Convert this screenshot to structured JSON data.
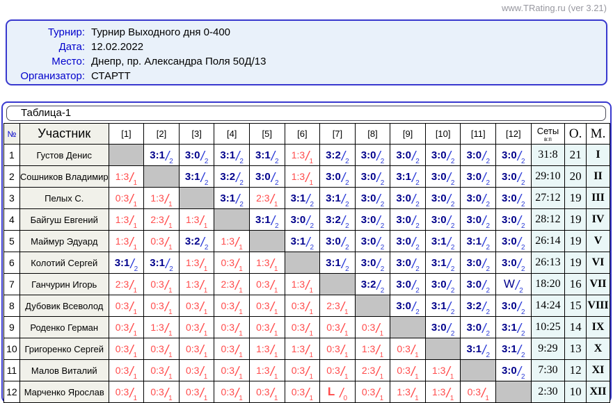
{
  "site_credit": "www.TRating.ru (ver 3.21)",
  "info": {
    "fields": [
      {
        "label": "Турнир:",
        "value": "Турнир Выходного дня 0-400"
      },
      {
        "label": "Дата:",
        "value": "12.02.2022"
      },
      {
        "label": "Место:",
        "value": "Днепр, пр. Александра Поля 50Д/13"
      },
      {
        "label": "Организатор:",
        "value": "СТАРТТ"
      }
    ]
  },
  "table": {
    "tab_title": "Таблица-1",
    "headers": {
      "num": "№",
      "participant": "Участник",
      "rounds": [
        "[1]",
        "[2]",
        "[3]",
        "[4]",
        "[5]",
        "[6]",
        "[7]",
        "[8]",
        "[9]",
        "[10]",
        "[11]",
        "[12]"
      ],
      "sets_top": "Сеты",
      "sets_bottom": "в:п",
      "points": "О.",
      "place": "М."
    },
    "rows": [
      {
        "num": "1",
        "name": "Густов Денис",
        "cells": [
          null,
          {
            "s": "3:1",
            "sub": "2",
            "r": "w"
          },
          {
            "s": "3:0",
            "sub": "2",
            "r": "w"
          },
          {
            "s": "3:1",
            "sub": "2",
            "r": "w"
          },
          {
            "s": "3:1",
            "sub": "2",
            "r": "w"
          },
          {
            "s": "1:3",
            "sub": "1",
            "r": "l"
          },
          {
            "s": "3:2",
            "sub": "2",
            "r": "w"
          },
          {
            "s": "3:0",
            "sub": "2",
            "r": "w"
          },
          {
            "s": "3:0",
            "sub": "2",
            "r": "w"
          },
          {
            "s": "3:0",
            "sub": "2",
            "r": "w"
          },
          {
            "s": "3:0",
            "sub": "2",
            "r": "w"
          },
          {
            "s": "3:0",
            "sub": "2",
            "r": "w"
          }
        ],
        "sets": "31:8",
        "points": "21",
        "place": "I"
      },
      {
        "num": "2",
        "name": "Сошников Владимир",
        "cells": [
          {
            "s": "1:3",
            "sub": "1",
            "r": "l"
          },
          null,
          {
            "s": "3:1",
            "sub": "2",
            "r": "w"
          },
          {
            "s": "3:2",
            "sub": "2",
            "r": "w"
          },
          {
            "s": "3:0",
            "sub": "2",
            "r": "w"
          },
          {
            "s": "1:3",
            "sub": "1",
            "r": "l"
          },
          {
            "s": "3:0",
            "sub": "2",
            "r": "w"
          },
          {
            "s": "3:0",
            "sub": "2",
            "r": "w"
          },
          {
            "s": "3:1",
            "sub": "2",
            "r": "w"
          },
          {
            "s": "3:0",
            "sub": "2",
            "r": "w"
          },
          {
            "s": "3:0",
            "sub": "2",
            "r": "w"
          },
          {
            "s": "3:0",
            "sub": "2",
            "r": "w"
          }
        ],
        "sets": "29:10",
        "points": "20",
        "place": "II"
      },
      {
        "num": "3",
        "name": "Пелых С.",
        "cells": [
          {
            "s": "0:3",
            "sub": "1",
            "r": "l"
          },
          {
            "s": "1:3",
            "sub": "1",
            "r": "l"
          },
          null,
          {
            "s": "3:1",
            "sub": "2",
            "r": "w"
          },
          {
            "s": "2:3",
            "sub": "1",
            "r": "l"
          },
          {
            "s": "3:1",
            "sub": "2",
            "r": "w"
          },
          {
            "s": "3:1",
            "sub": "2",
            "r": "w"
          },
          {
            "s": "3:0",
            "sub": "2",
            "r": "w"
          },
          {
            "s": "3:0",
            "sub": "2",
            "r": "w"
          },
          {
            "s": "3:0",
            "sub": "2",
            "r": "w"
          },
          {
            "s": "3:0",
            "sub": "2",
            "r": "w"
          },
          {
            "s": "3:0",
            "sub": "2",
            "r": "w"
          }
        ],
        "sets": "27:12",
        "points": "19",
        "place": "III"
      },
      {
        "num": "4",
        "name": "Байгуш Евгений",
        "cells": [
          {
            "s": "1:3",
            "sub": "1",
            "r": "l"
          },
          {
            "s": "2:3",
            "sub": "1",
            "r": "l"
          },
          {
            "s": "1:3",
            "sub": "1",
            "r": "l"
          },
          null,
          {
            "s": "3:1",
            "sub": "2",
            "r": "w"
          },
          {
            "s": "3:0",
            "sub": "2",
            "r": "w"
          },
          {
            "s": "3:2",
            "sub": "2",
            "r": "w"
          },
          {
            "s": "3:0",
            "sub": "2",
            "r": "w"
          },
          {
            "s": "3:0",
            "sub": "2",
            "r": "w"
          },
          {
            "s": "3:0",
            "sub": "2",
            "r": "w"
          },
          {
            "s": "3:0",
            "sub": "2",
            "r": "w"
          },
          {
            "s": "3:0",
            "sub": "2",
            "r": "w"
          }
        ],
        "sets": "28:12",
        "points": "19",
        "place": "IV"
      },
      {
        "num": "5",
        "name": "Маймур Эдуард",
        "cells": [
          {
            "s": "1:3",
            "sub": "1",
            "r": "l"
          },
          {
            "s": "0:3",
            "sub": "1",
            "r": "l"
          },
          {
            "s": "3:2",
            "sub": "2",
            "r": "w"
          },
          {
            "s": "1:3",
            "sub": "1",
            "r": "l"
          },
          null,
          {
            "s": "3:1",
            "sub": "2",
            "r": "w"
          },
          {
            "s": "3:0",
            "sub": "2",
            "r": "w"
          },
          {
            "s": "3:0",
            "sub": "2",
            "r": "w"
          },
          {
            "s": "3:0",
            "sub": "2",
            "r": "w"
          },
          {
            "s": "3:1",
            "sub": "2",
            "r": "w"
          },
          {
            "s": "3:1",
            "sub": "2",
            "r": "w"
          },
          {
            "s": "3:0",
            "sub": "2",
            "r": "w"
          }
        ],
        "sets": "26:14",
        "points": "19",
        "place": "V"
      },
      {
        "num": "6",
        "name": "Колотий Сергей",
        "cells": [
          {
            "s": "3:1",
            "sub": "2",
            "r": "w"
          },
          {
            "s": "3:1",
            "sub": "2",
            "r": "w"
          },
          {
            "s": "1:3",
            "sub": "1",
            "r": "l"
          },
          {
            "s": "0:3",
            "sub": "1",
            "r": "l"
          },
          {
            "s": "1:3",
            "sub": "1",
            "r": "l"
          },
          null,
          {
            "s": "3:1",
            "sub": "2",
            "r": "w"
          },
          {
            "s": "3:0",
            "sub": "2",
            "r": "w"
          },
          {
            "s": "3:0",
            "sub": "2",
            "r": "w"
          },
          {
            "s": "3:1",
            "sub": "2",
            "r": "w"
          },
          {
            "s": "3:0",
            "sub": "2",
            "r": "w"
          },
          {
            "s": "3:0",
            "sub": "2",
            "r": "w"
          }
        ],
        "sets": "26:13",
        "points": "19",
        "place": "VI"
      },
      {
        "num": "7",
        "name": "Ганчурин Игорь",
        "cells": [
          {
            "s": "2:3",
            "sub": "1",
            "r": "l"
          },
          {
            "s": "0:3",
            "sub": "1",
            "r": "l"
          },
          {
            "s": "1:3",
            "sub": "1",
            "r": "l"
          },
          {
            "s": "2:3",
            "sub": "1",
            "r": "l"
          },
          {
            "s": "0:3",
            "sub": "1",
            "r": "l"
          },
          {
            "s": "1:3",
            "sub": "1",
            "r": "l"
          },
          null,
          {
            "s": "3:2",
            "sub": "2",
            "r": "w"
          },
          {
            "s": "3:0",
            "sub": "2",
            "r": "w"
          },
          {
            "s": "3:0",
            "sub": "2",
            "r": "w"
          },
          {
            "s": "3:0",
            "sub": "2",
            "r": "w"
          },
          {
            "s": "W",
            "sub": "2",
            "r": "w",
            "big": true
          }
        ],
        "sets": "18:20",
        "points": "16",
        "place": "VII"
      },
      {
        "num": "8",
        "name": "Дубовик Всеволод",
        "cells": [
          {
            "s": "0:3",
            "sub": "1",
            "r": "l"
          },
          {
            "s": "0:3",
            "sub": "1",
            "r": "l"
          },
          {
            "s": "0:3",
            "sub": "1",
            "r": "l"
          },
          {
            "s": "0:3",
            "sub": "1",
            "r": "l"
          },
          {
            "s": "0:3",
            "sub": "1",
            "r": "l"
          },
          {
            "s": "0:3",
            "sub": "1",
            "r": "l"
          },
          {
            "s": "2:3",
            "sub": "1",
            "r": "l"
          },
          null,
          {
            "s": "3:0",
            "sub": "2",
            "r": "w"
          },
          {
            "s": "3:1",
            "sub": "2",
            "r": "w"
          },
          {
            "s": "3:2",
            "sub": "2",
            "r": "w"
          },
          {
            "s": "3:0",
            "sub": "2",
            "r": "w"
          }
        ],
        "sets": "14:24",
        "points": "15",
        "place": "VIII"
      },
      {
        "num": "9",
        "name": "Роденко Герман",
        "cells": [
          {
            "s": "0:3",
            "sub": "1",
            "r": "l"
          },
          {
            "s": "1:3",
            "sub": "1",
            "r": "l"
          },
          {
            "s": "0:3",
            "sub": "1",
            "r": "l"
          },
          {
            "s": "0:3",
            "sub": "1",
            "r": "l"
          },
          {
            "s": "0:3",
            "sub": "1",
            "r": "l"
          },
          {
            "s": "0:3",
            "sub": "1",
            "r": "l"
          },
          {
            "s": "0:3",
            "sub": "1",
            "r": "l"
          },
          {
            "s": "0:3",
            "sub": "1",
            "r": "l"
          },
          null,
          {
            "s": "3:0",
            "sub": "2",
            "r": "w"
          },
          {
            "s": "3:0",
            "sub": "2",
            "r": "w"
          },
          {
            "s": "3:1",
            "sub": "2",
            "r": "w"
          }
        ],
        "sets": "10:25",
        "points": "14",
        "place": "IX"
      },
      {
        "num": "10",
        "name": "Григоренко Сергей",
        "cells": [
          {
            "s": "0:3",
            "sub": "1",
            "r": "l"
          },
          {
            "s": "0:3",
            "sub": "1",
            "r": "l"
          },
          {
            "s": "0:3",
            "sub": "1",
            "r": "l"
          },
          {
            "s": "0:3",
            "sub": "1",
            "r": "l"
          },
          {
            "s": "1:3",
            "sub": "1",
            "r": "l"
          },
          {
            "s": "1:3",
            "sub": "1",
            "r": "l"
          },
          {
            "s": "0:3",
            "sub": "1",
            "r": "l"
          },
          {
            "s": "1:3",
            "sub": "1",
            "r": "l"
          },
          {
            "s": "0:3",
            "sub": "1",
            "r": "l"
          },
          null,
          {
            "s": "3:1",
            "sub": "2",
            "r": "w"
          },
          {
            "s": "3:1",
            "sub": "2",
            "r": "w"
          }
        ],
        "sets": "9:29",
        "points": "13",
        "place": "X"
      },
      {
        "num": "11",
        "name": "Малов Виталий",
        "cells": [
          {
            "s": "0:3",
            "sub": "1",
            "r": "l"
          },
          {
            "s": "0:3",
            "sub": "1",
            "r": "l"
          },
          {
            "s": "0:3",
            "sub": "1",
            "r": "l"
          },
          {
            "s": "0:3",
            "sub": "1",
            "r": "l"
          },
          {
            "s": "1:3",
            "sub": "1",
            "r": "l"
          },
          {
            "s": "0:3",
            "sub": "1",
            "r": "l"
          },
          {
            "s": "0:3",
            "sub": "1",
            "r": "l"
          },
          {
            "s": "2:3",
            "sub": "1",
            "r": "l"
          },
          {
            "s": "0:3",
            "sub": "1",
            "r": "l"
          },
          {
            "s": "1:3",
            "sub": "1",
            "r": "l"
          },
          null,
          {
            "s": "3:0",
            "sub": "2",
            "r": "w"
          }
        ],
        "sets": "7:30",
        "points": "12",
        "place": "XI"
      },
      {
        "num": "12",
        "name": "Марченко Ярослав",
        "cells": [
          {
            "s": "0:3",
            "sub": "1",
            "r": "l"
          },
          {
            "s": "0:3",
            "sub": "1",
            "r": "l"
          },
          {
            "s": "0:3",
            "sub": "1",
            "r": "l"
          },
          {
            "s": "0:3",
            "sub": "1",
            "r": "l"
          },
          {
            "s": "0:3",
            "sub": "1",
            "r": "l"
          },
          {
            "s": "0:3",
            "sub": "1",
            "r": "l"
          },
          {
            "s": "L",
            "sub": "0",
            "r": "l",
            "big": true
          },
          {
            "s": "0:3",
            "sub": "1",
            "r": "l"
          },
          {
            "s": "1:3",
            "sub": "1",
            "r": "l"
          },
          {
            "s": "1:3",
            "sub": "1",
            "r": "l"
          },
          {
            "s": "0:3",
            "sub": "1",
            "r": "l"
          },
          null
        ],
        "sets": "2:30",
        "points": "10",
        "place": "XII"
      }
    ]
  },
  "colors": {
    "win_score": "#00008B",
    "win_fraction": "#2B3BD6",
    "loss": "#FF4A4A",
    "panel_border": "#3838CE",
    "label_blue": "#0000CC",
    "info_bg": "#E9F1FA",
    "name_bg": "#F1F1EA",
    "diagonal_bg": "#C4C4C4",
    "totals_bg": "#EAF7F7"
  }
}
